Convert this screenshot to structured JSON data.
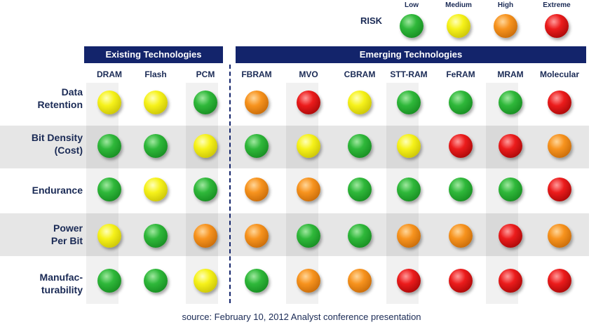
{
  "legend": {
    "title": "RISK",
    "levels": [
      {
        "label": "Low",
        "color": "green"
      },
      {
        "label": "Medium",
        "color": "yellow"
      },
      {
        "label": "High",
        "color": "orange"
      },
      {
        "label": "Extreme",
        "color": "red"
      }
    ]
  },
  "groups": {
    "existing": "Existing Technologies",
    "emerging": "Emerging Technologies"
  },
  "columns": [
    "DRAM",
    "Flash",
    "PCM",
    "FBRAM",
    "MVO",
    "CBRAM",
    "STT-RAM",
    "FeRAM",
    "MRAM",
    "Molecular"
  ],
  "rows": [
    {
      "label_line1": "Data",
      "label_line2": "Retention",
      "risks": [
        "yellow",
        "yellow",
        "green",
        "orange",
        "red",
        "yellow",
        "green",
        "green",
        "green",
        "red"
      ]
    },
    {
      "label_line1": "Bit Density",
      "label_line2": "(Cost)",
      "risks": [
        "green",
        "green",
        "yellow",
        "green",
        "yellow",
        "green",
        "yellow",
        "red",
        "red",
        "orange"
      ]
    },
    {
      "label_line1": "Endurance",
      "label_line2": "",
      "risks": [
        "green",
        "yellow",
        "green",
        "orange",
        "orange",
        "green",
        "green",
        "green",
        "green",
        "red"
      ]
    },
    {
      "label_line1": "Power",
      "label_line2": "Per Bit",
      "risks": [
        "yellow",
        "green",
        "orange",
        "orange",
        "green",
        "green",
        "orange",
        "orange",
        "red",
        "orange"
      ]
    },
    {
      "label_line1": "Manufac-",
      "label_line2": "turability",
      "risks": [
        "green",
        "green",
        "yellow",
        "green",
        "orange",
        "orange",
        "red",
        "red",
        "red",
        "red"
      ]
    }
  ],
  "source": "source: February 10, 2012 Analyst conference presentation"
}
